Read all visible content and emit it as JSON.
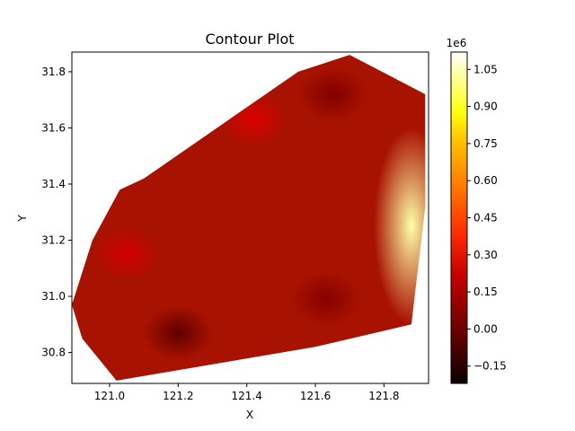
{
  "chart_data": {
    "type": "contour",
    "title": "Contour Plot",
    "xlabel": "X",
    "ylabel": "Y",
    "xlim": [
      120.89,
      121.93
    ],
    "ylim": [
      30.69,
      31.87
    ],
    "xticks": [
      121.0,
      121.2,
      121.4,
      121.6,
      121.8
    ],
    "xtick_labels": [
      "121.0",
      "121.2",
      "121.4",
      "121.6",
      "121.8"
    ],
    "yticks": [
      30.8,
      31.0,
      31.2,
      31.4,
      31.6,
      31.8
    ],
    "ytick_labels": [
      "30.8",
      "31.0",
      "31.2",
      "31.4",
      "31.6",
      "31.8"
    ],
    "colormap": "hot",
    "colorbar": {
      "range": [
        -0.22,
        1.12
      ],
      "ticks": [
        -0.15,
        0.0,
        0.15,
        0.3,
        0.45,
        0.6,
        0.75,
        0.9,
        1.05
      ],
      "tick_labels": [
        "−0.15",
        "0.00",
        "0.15",
        "0.30",
        "0.45",
        "0.60",
        "0.75",
        "0.90",
        "1.05"
      ],
      "offset_text": "1e6"
    },
    "domain_hull": [
      [
        121.1,
        31.42
      ],
      [
        121.55,
        31.8
      ],
      [
        121.7,
        31.86
      ],
      [
        121.92,
        31.72
      ],
      [
        121.92,
        31.32
      ],
      [
        121.88,
        30.9
      ],
      [
        121.6,
        30.82
      ],
      [
        121.02,
        30.7
      ],
      [
        120.92,
        30.85
      ],
      [
        120.89,
        30.97
      ],
      [
        120.95,
        31.2
      ],
      [
        121.03,
        31.38
      ]
    ],
    "features": [
      {
        "kind": "high",
        "x": 121.88,
        "y": 31.25,
        "value": 1.0
      },
      {
        "kind": "low",
        "x": 121.2,
        "y": 30.87,
        "value": -0.05
      },
      {
        "kind": "low",
        "x": 121.65,
        "y": 31.72,
        "value": 0.02
      },
      {
        "kind": "low",
        "x": 121.63,
        "y": 30.99,
        "value": 0.03
      },
      {
        "kind": "moderate",
        "x": 121.42,
        "y": 31.63,
        "value": 0.2
      },
      {
        "kind": "moderate",
        "x": 121.05,
        "y": 31.15,
        "value": 0.18
      }
    ]
  }
}
